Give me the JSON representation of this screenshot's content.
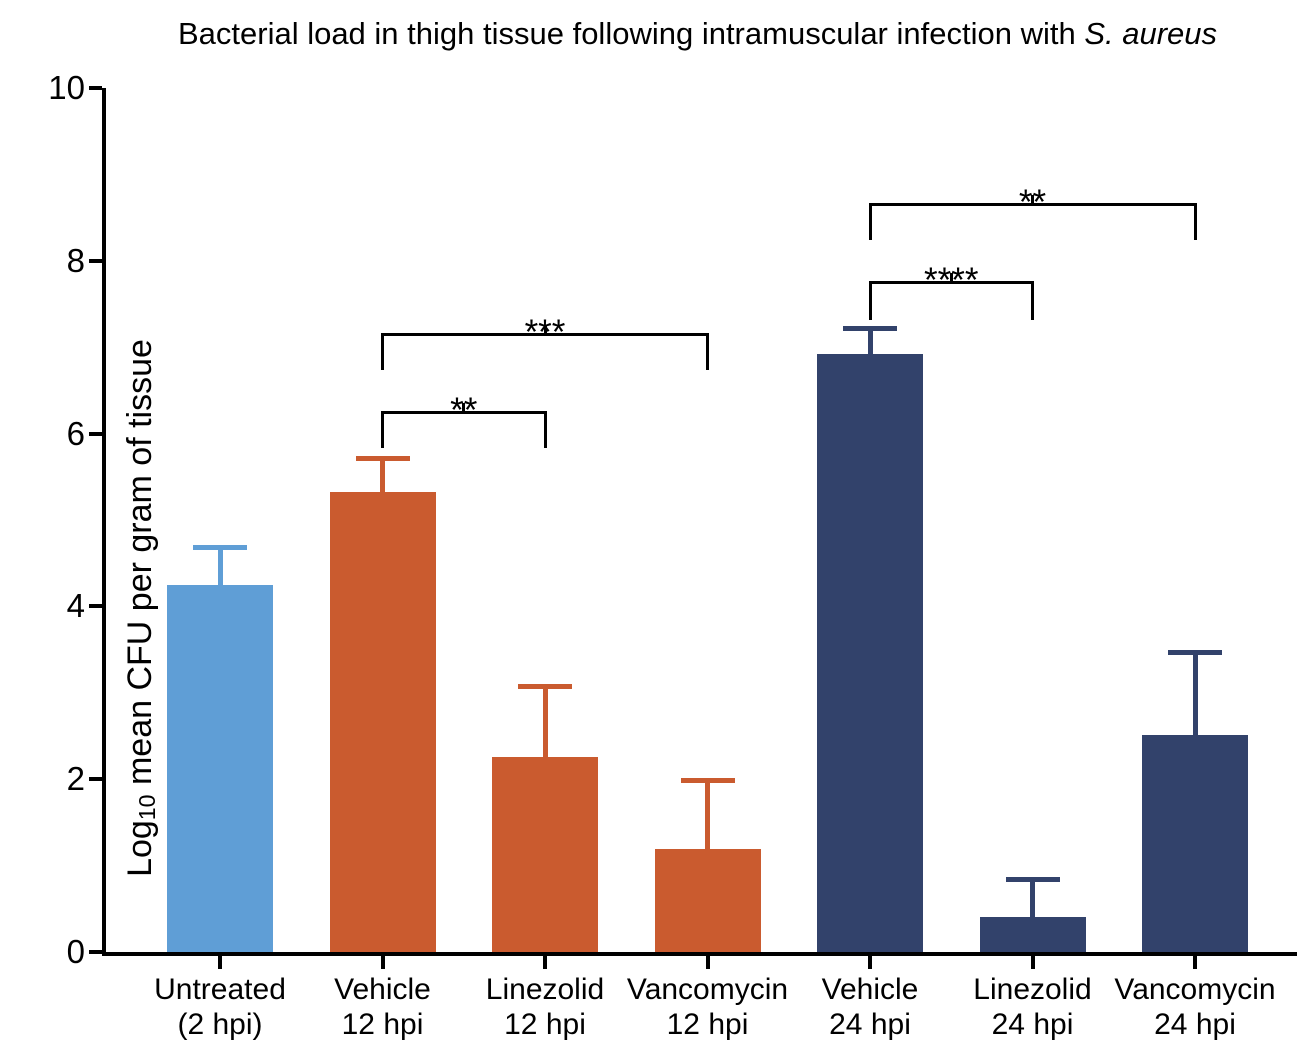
{
  "title": {
    "prefix": "Bacterial load in thigh tissue following intramuscular infection with ",
    "species_italic": "S. aureus"
  },
  "chart_data": {
    "type": "bar",
    "title": "Bacterial load in thigh tissue following intramuscular infection with S. aureus",
    "xlabel": "",
    "ylabel": "Log10 mean CFU per gram of tissue",
    "ylabel_parts": {
      "prefix": "Log",
      "subscript": "10",
      "suffix": " mean CFU per gram of tissue"
    },
    "ylim": [
      0,
      10
    ],
    "yticks": [
      0,
      2,
      4,
      6,
      8,
      10
    ],
    "grid": false,
    "legend": "none",
    "error_bars": "upper SD only, capped",
    "axis_color": "#000000",
    "categories": [
      "Untreated (2 hpi)",
      "Vehicle 12 hpi",
      "Linezolid 12 hpi",
      "Vancomycin 12 hpi",
      "Vehicle 24 hpi",
      "Linezolid 24 hpi",
      "Vancomycin 24 hpi"
    ],
    "bars": [
      {
        "category": "Untreated (2 hpi)",
        "label_lines": [
          "Untreated",
          "(2 hpi)"
        ],
        "mean": 4.25,
        "sd_upper": 0.43,
        "color": "#5F9ED6"
      },
      {
        "category": "Vehicle 12 hpi",
        "label_lines": [
          "Vehicle",
          "12 hpi"
        ],
        "mean": 5.32,
        "sd_upper": 0.39,
        "color": "#CA5B2F"
      },
      {
        "category": "Linezolid 12 hpi",
        "label_lines": [
          "Linezolid",
          "12 hpi"
        ],
        "mean": 2.26,
        "sd_upper": 0.81,
        "color": "#CA5B2F"
      },
      {
        "category": "Vancomycin 12 hpi",
        "label_lines": [
          "Vancomycin",
          "12 hpi"
        ],
        "mean": 1.19,
        "sd_upper": 0.79,
        "color": "#CA5B2F"
      },
      {
        "category": "Vehicle 24 hpi",
        "label_lines": [
          "Vehicle",
          "24 hpi"
        ],
        "mean": 6.92,
        "sd_upper": 0.3,
        "color": "#32426B"
      },
      {
        "category": "Linezolid 24 hpi",
        "label_lines": [
          "Linezolid",
          "24 hpi"
        ],
        "mean": 0.41,
        "sd_upper": 0.43,
        "color": "#32426B"
      },
      {
        "category": "Vancomycin 24 hpi",
        "label_lines": [
          "Vancomycin",
          "24 hpi"
        ],
        "mean": 2.51,
        "sd_upper": 0.96,
        "color": "#32426B"
      }
    ],
    "significance_brackets": [
      {
        "from_index": 1,
        "to_index": 2,
        "bar_y": 6.26,
        "leg_bottom_y": 5.83,
        "label": "**"
      },
      {
        "from_index": 1,
        "to_index": 3,
        "bar_y": 7.16,
        "leg_bottom_y": 6.74,
        "label": "***"
      },
      {
        "from_index": 4,
        "to_index": 5,
        "bar_y": 7.77,
        "leg_bottom_y": 7.31,
        "label": "****"
      },
      {
        "from_index": 4,
        "to_index": 6,
        "bar_y": 8.67,
        "leg_bottom_y": 8.24,
        "label": "**"
      }
    ]
  }
}
